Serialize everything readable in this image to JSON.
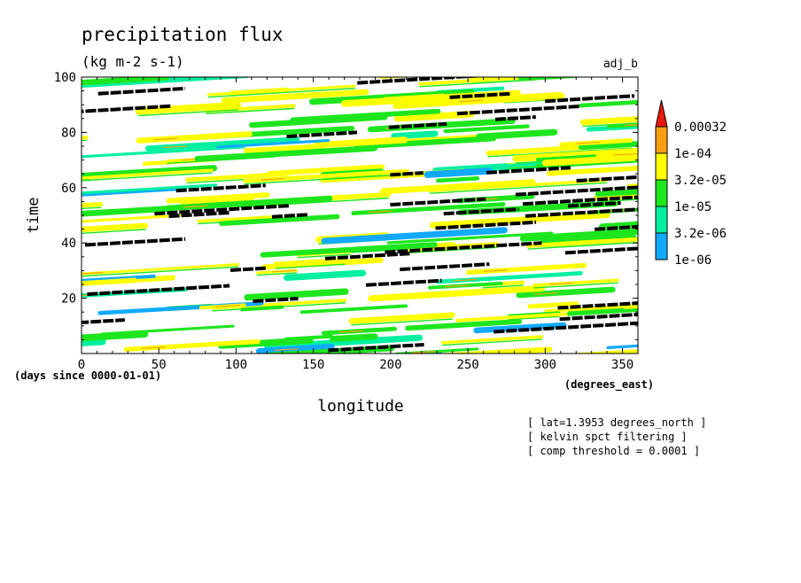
{
  "chart_data": {
    "type": "heatmap",
    "title": "precipitation flux",
    "subtitle": "(kg m-2 s-1)",
    "label_top_right": "adj_b",
    "xlabel": "longitude",
    "xunits": "(degrees_east)",
    "ylabel": "time",
    "yunits": "(days since 0000-01-01)",
    "xlim": [
      0,
      360
    ],
    "ylim": [
      0,
      100
    ],
    "x_ticks": [
      0,
      50,
      100,
      150,
      200,
      250,
      300,
      350
    ],
    "y_ticks": [
      20,
      40,
      60,
      80,
      100
    ],
    "colorbar": {
      "labels": [
        "0.00032",
        "1e-04",
        "3.2e-05",
        "1e-05",
        "3.2e-06",
        "1e-06"
      ],
      "colors": [
        "#e8190c",
        "#f5a010",
        "#ffff00",
        "#1ee61e",
        "#00f0a0",
        "#11aaff"
      ]
    },
    "band_colors": {
      "yellow": "#ffff00",
      "green": "#1ee61e",
      "teal": "#00f0a0",
      "blue": "#11aaff",
      "orange": "#f5a010",
      "filtered_contour": "#000000"
    },
    "propagation_slope_deg_per_day": 30,
    "notes": [
      "[ lat=1.3953 degrees_north ]",
      "[ kelvin spct filtering ]",
      "[ comp threshold = 0.0001 ]"
    ]
  }
}
